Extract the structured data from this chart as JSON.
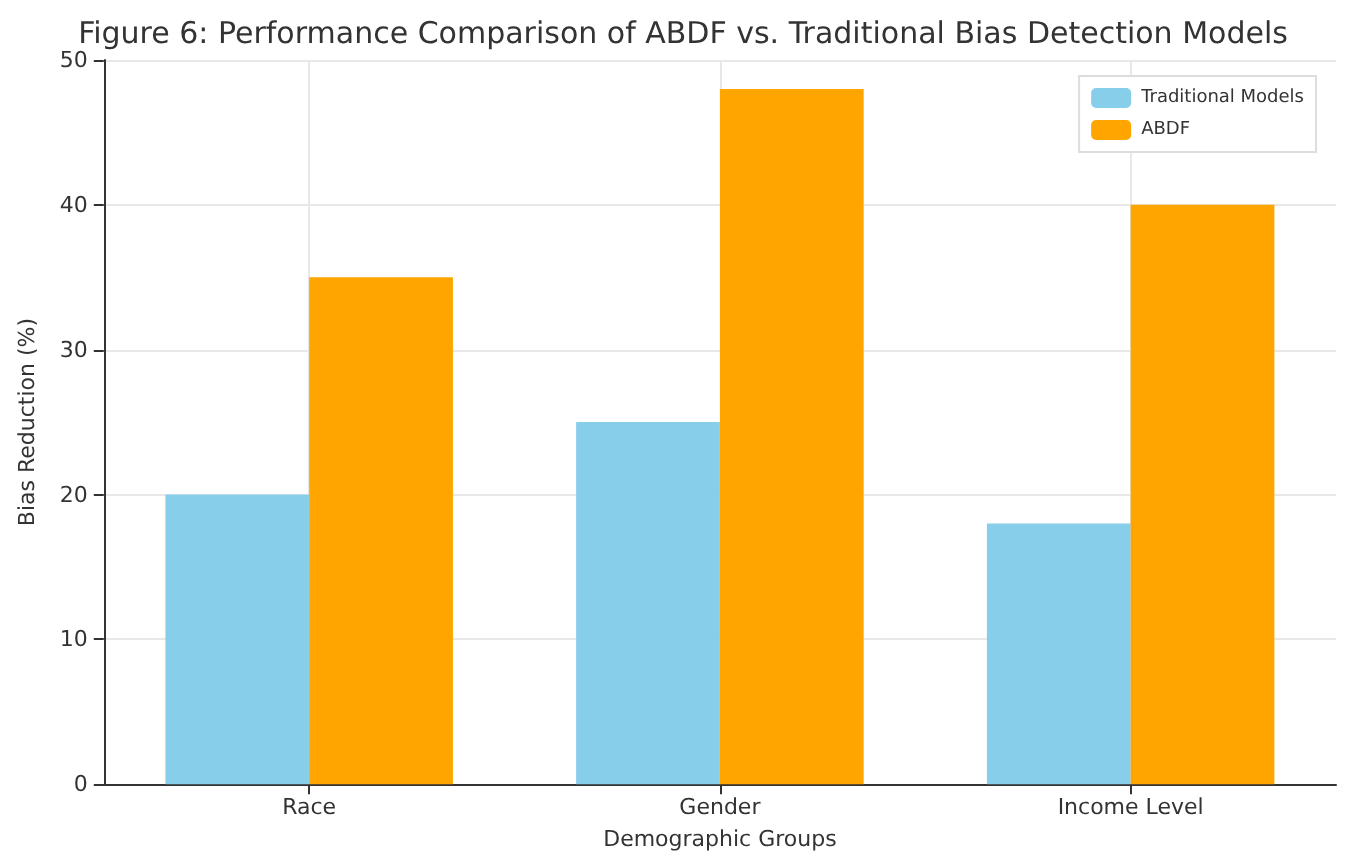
{
  "chart_data": {
    "type": "bar",
    "title": "Figure 6: Performance Comparison of ABDF vs. Traditional Bias Detection Models",
    "xlabel": "Demographic Groups",
    "ylabel": "Bias Reduction (%)",
    "categories": [
      "Race",
      "Gender",
      "Income Level"
    ],
    "series": [
      {
        "name": "Traditional Models",
        "color": "#87ceeb",
        "values": [
          20,
          25,
          18
        ]
      },
      {
        "name": "ABDF",
        "color": "#ffa500",
        "values": [
          35,
          48,
          40
        ]
      }
    ],
    "ylim": [
      0,
      50
    ],
    "yticks": [
      0,
      10,
      20,
      30,
      40,
      50
    ],
    "grid": true,
    "legend": "top right"
  }
}
